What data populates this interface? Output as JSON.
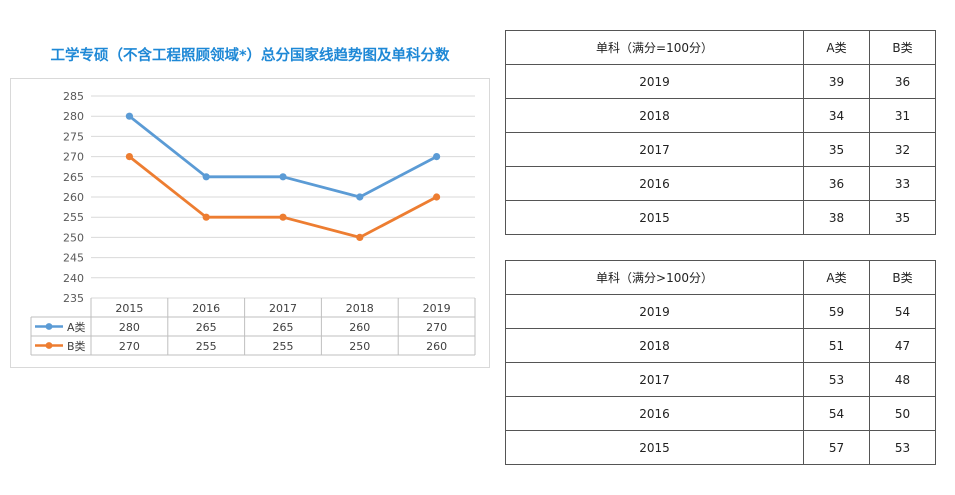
{
  "title": "工学专硕（不含工程照顾领域*）总分国家线趋势图及单科分数",
  "chart_data": {
    "type": "line",
    "categories": [
      "2015",
      "2016",
      "2017",
      "2018",
      "2019"
    ],
    "series": [
      {
        "name": "A类",
        "values": [
          280,
          265,
          265,
          260,
          270
        ],
        "color": "#5b9bd5"
      },
      {
        "name": "B类",
        "values": [
          270,
          255,
          255,
          250,
          260
        ],
        "color": "#ed7d31"
      }
    ],
    "yticks": [
      "285",
      "280",
      "275",
      "270",
      "265",
      "260",
      "255",
      "250",
      "245",
      "240",
      "235"
    ],
    "ylim": [
      235,
      285
    ],
    "grid": true,
    "legend": "data-table"
  },
  "table1": {
    "headers": [
      "单科（满分=100分）",
      "A类",
      "B类"
    ],
    "rows": [
      [
        "2019",
        "39",
        "36"
      ],
      [
        "2018",
        "34",
        "31"
      ],
      [
        "2017",
        "35",
        "32"
      ],
      [
        "2016",
        "36",
        "33"
      ],
      [
        "2015",
        "38",
        "35"
      ]
    ]
  },
  "table2": {
    "headers": [
      "单科（满分>100分）",
      "A类",
      "B类"
    ],
    "rows": [
      [
        "2019",
        "59",
        "54"
      ],
      [
        "2018",
        "51",
        "47"
      ],
      [
        "2017",
        "53",
        "48"
      ],
      [
        "2016",
        "54",
        "50"
      ],
      [
        "2015",
        "57",
        "53"
      ]
    ]
  }
}
